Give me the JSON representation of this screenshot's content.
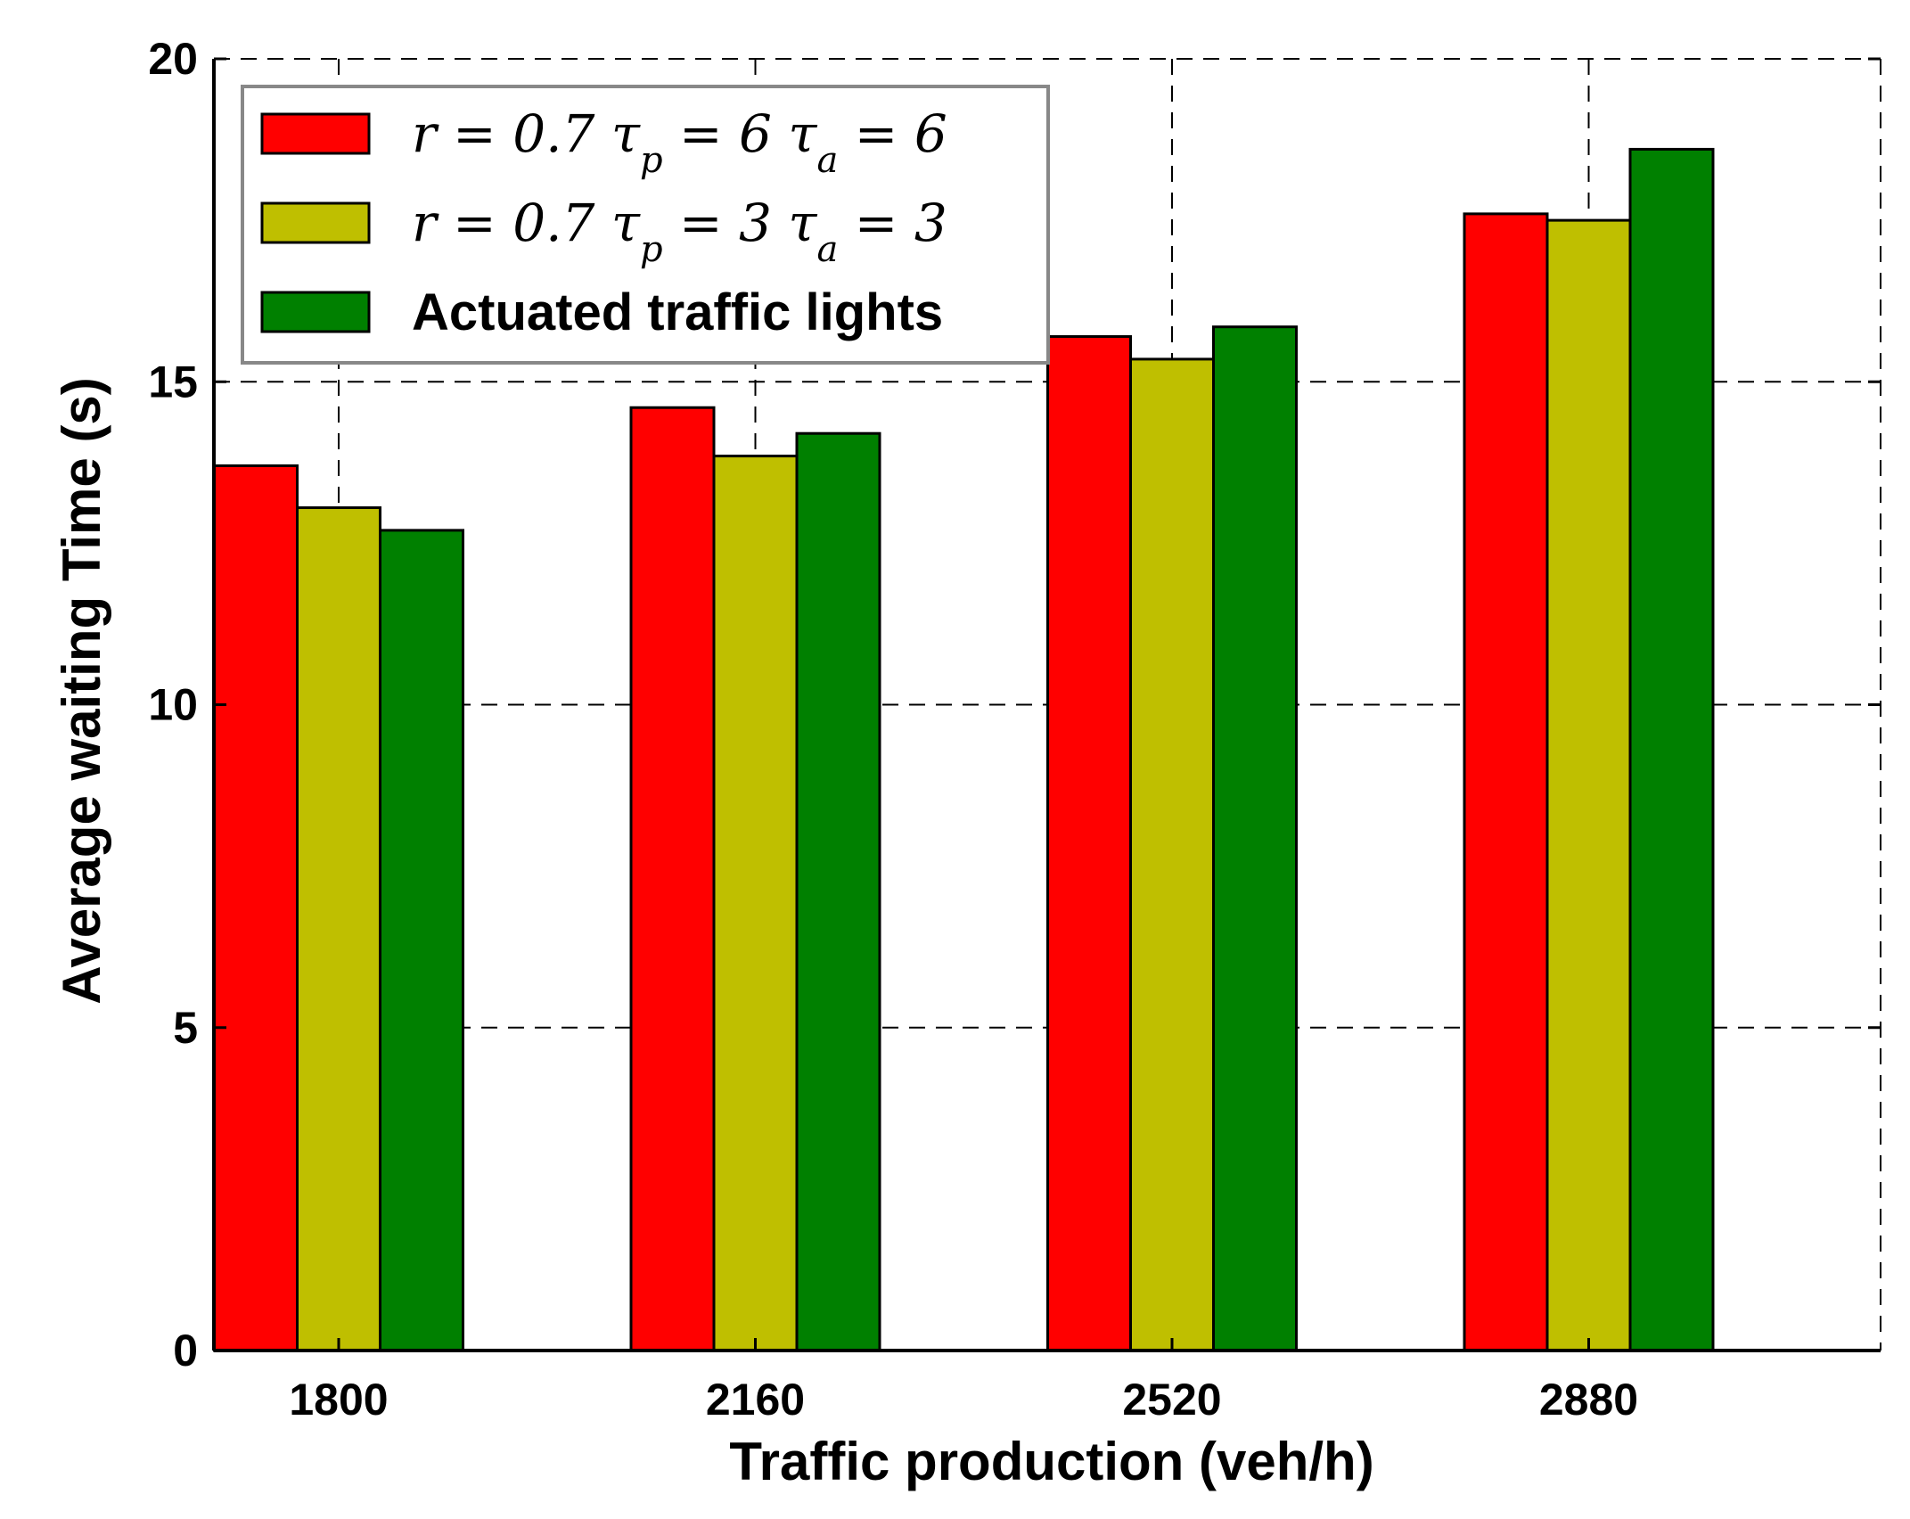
{
  "chart_data": {
    "type": "bar",
    "categories": [
      "1800",
      "2160",
      "2520",
      "2880"
    ],
    "series": [
      {
        "name": "r = 0.7 τp = 6 τa = 6",
        "color": "#ff0000",
        "values": [
          13.7,
          14.6,
          15.7,
          17.6
        ]
      },
      {
        "name": "r = 0.7 τp = 3 τa = 3",
        "color": "#bfbf00",
        "values": [
          13.05,
          13.85,
          15.35,
          17.5
        ]
      },
      {
        "name": "Actuated traffic lights",
        "color": "#008000",
        "values": [
          12.7,
          14.2,
          15.85,
          18.6
        ]
      }
    ],
    "xlabel": "Traffic production (veh/h)",
    "ylabel": "Average waiting Time (s)",
    "ylim": [
      0,
      20
    ],
    "yticks": [
      "0",
      "5",
      "10",
      "15",
      "20"
    ],
    "grid": true,
    "legend_position": "top-left"
  }
}
